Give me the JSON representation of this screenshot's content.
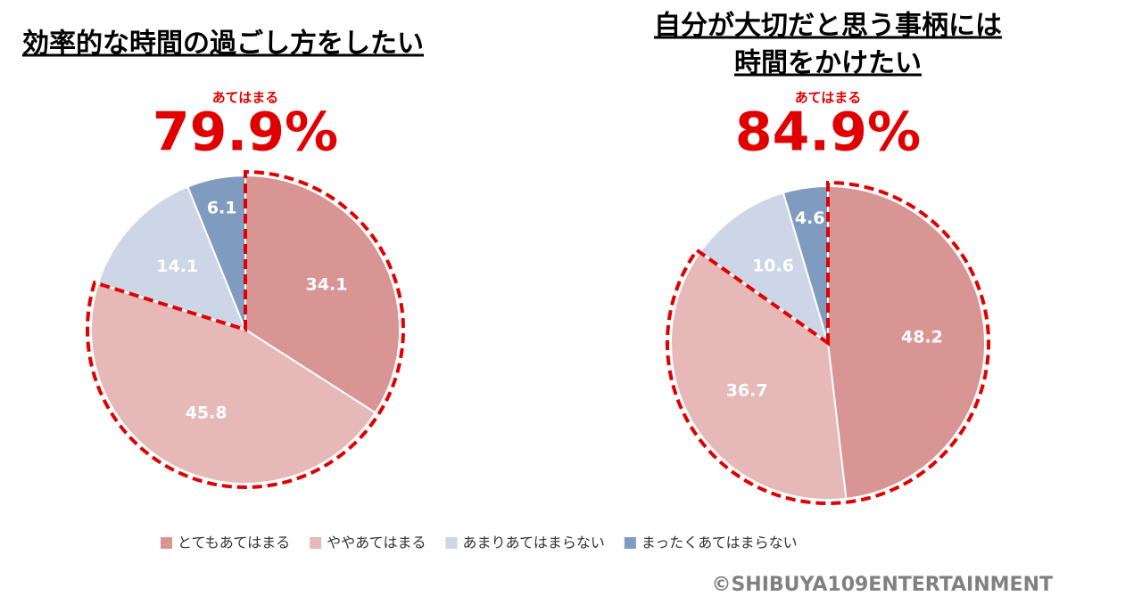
{
  "charts": [
    {
      "type": "pie",
      "title_lines": [
        "効率的な時間の過ごし方をしたい"
      ],
      "highlight": {
        "label": "あてはまる",
        "value": 79.9,
        "value_label": "79.9%",
        "slices": 2
      },
      "values": [
        34.1,
        45.8,
        14.1,
        6.1
      ]
    },
    {
      "type": "pie",
      "title_lines": [
        "自分が大切だと思う事柄には",
        "時間をかけたい"
      ],
      "highlight": {
        "label": "あてはまる",
        "value": 84.9,
        "value_label": "84.9%",
        "slices": 2
      },
      "values": [
        48.2,
        36.7,
        10.6,
        4.6
      ]
    }
  ],
  "legend": {
    "labels": [
      "とてもあてはまる",
      "ややあてはまる",
      "あまりあてはまらない",
      "まったくあてはまらない"
    ],
    "colors": [
      "#d99594",
      "#e6b8b7",
      "#cdd6e6",
      "#7f9cc0"
    ]
  },
  "copyright": "©SHIBUYA109ENTERTAINMENT"
}
